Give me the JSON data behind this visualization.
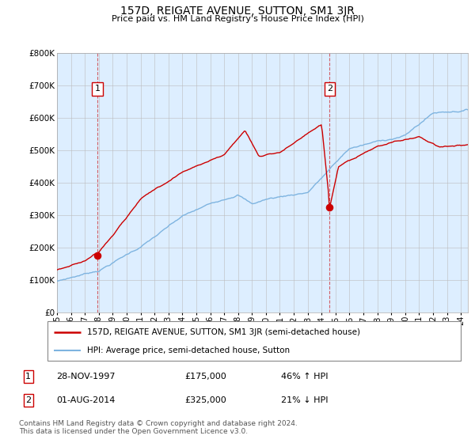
{
  "title": "157D, REIGATE AVENUE, SUTTON, SM1 3JR",
  "subtitle": "Price paid vs. HM Land Registry's House Price Index (HPI)",
  "ylim": [
    0,
    800000
  ],
  "yticks": [
    0,
    100000,
    200000,
    300000,
    400000,
    500000,
    600000,
    700000,
    800000
  ],
  "ytick_labels": [
    "£0",
    "£100K",
    "£200K",
    "£300K",
    "£400K",
    "£500K",
    "£600K",
    "£700K",
    "£800K"
  ],
  "sale_color": "#cc0000",
  "hpi_color": "#7eb4e0",
  "chart_bg": "#ddeeff",
  "sale1_date": 1997.91,
  "sale1_price": 175000,
  "sale2_date": 2014.58,
  "sale2_price": 325000,
  "legend_sale_label": "157D, REIGATE AVENUE, SUTTON, SM1 3JR (semi-detached house)",
  "legend_hpi_label": "HPI: Average price, semi-detached house, Sutton",
  "annotation1_label": "1",
  "annotation1_date": "28-NOV-1997",
  "annotation1_price": "£175,000",
  "annotation1_hpi": "46% ↑ HPI",
  "annotation2_label": "2",
  "annotation2_date": "01-AUG-2014",
  "annotation2_price": "£325,000",
  "annotation2_hpi": "21% ↓ HPI",
  "footer": "Contains HM Land Registry data © Crown copyright and database right 2024.\nThis data is licensed under the Open Government Licence v3.0.",
  "background_color": "#ffffff",
  "grid_color": "#bbbbbb"
}
